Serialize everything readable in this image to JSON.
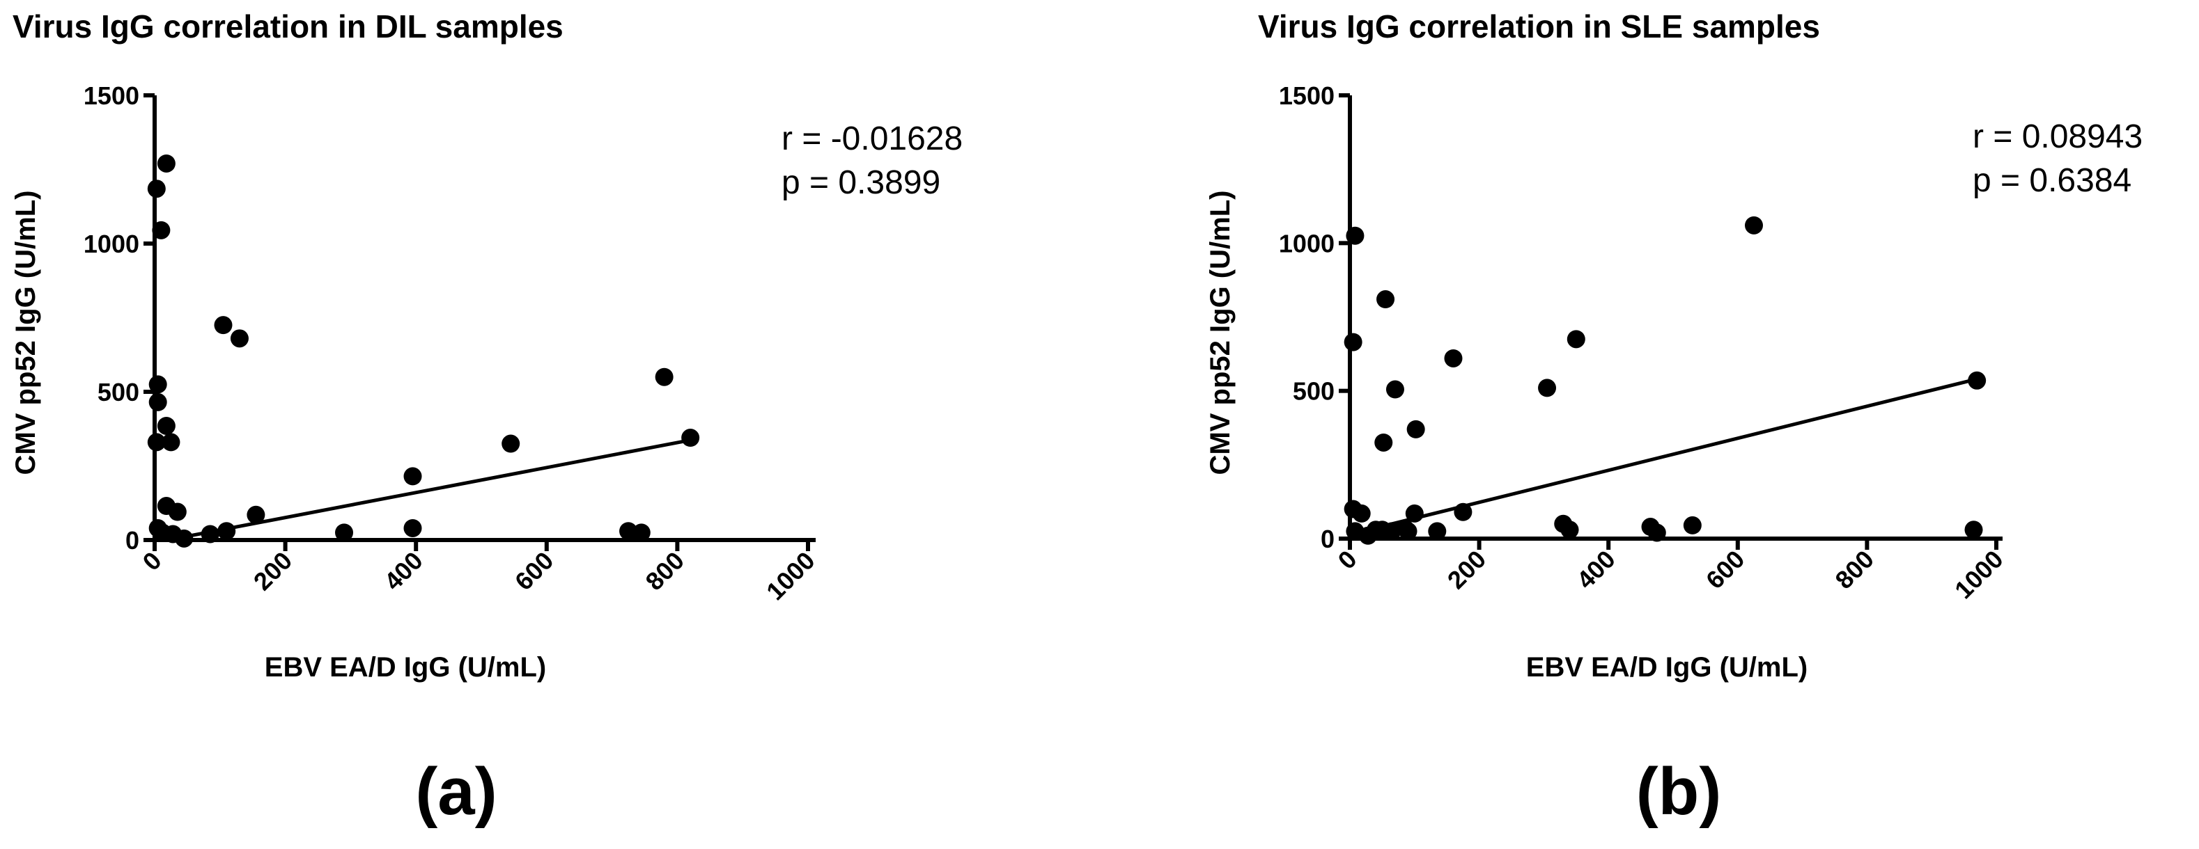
{
  "chart_data": [
    {
      "type": "scatter",
      "title": "Virus IgG correlation in DIL samples",
      "xlabel": "EBV EA/D IgG (U/mL)",
      "ylabel": "CMV pp52 IgG (U/mL)",
      "xlim": [
        0,
        1000
      ],
      "ylim": [
        0,
        1500
      ],
      "xticks": [
        "0",
        "200",
        "400",
        "600",
        "800",
        "1000"
      ],
      "yticks": [
        "0",
        "500",
        "1000",
        "1500"
      ],
      "annotations": [
        "r = -0.01628",
        "p = 0.3899"
      ],
      "panel_label": "(a)",
      "points": [
        [
          3,
          1185
        ],
        [
          10,
          1045
        ],
        [
          18,
          1270
        ],
        [
          5,
          525
        ],
        [
          5,
          465
        ],
        [
          18,
          385
        ],
        [
          3,
          330
        ],
        [
          25,
          330
        ],
        [
          18,
          115
        ],
        [
          35,
          95
        ],
        [
          5,
          40
        ],
        [
          12,
          25
        ],
        [
          28,
          20
        ],
        [
          45,
          5
        ],
        [
          105,
          725
        ],
        [
          130,
          680
        ],
        [
          85,
          20
        ],
        [
          110,
          30
        ],
        [
          155,
          85
        ],
        [
          290,
          25
        ],
        [
          395,
          215
        ],
        [
          395,
          40
        ],
        [
          545,
          325
        ],
        [
          725,
          30
        ],
        [
          745,
          25
        ],
        [
          780,
          550
        ],
        [
          820,
          345
        ]
      ],
      "regression": {
        "x": [
          20,
          815
        ],
        "y": [
          0,
          335
        ]
      }
    },
    {
      "type": "scatter",
      "title": "Virus IgG correlation in SLE samples",
      "xlabel": "EBV EA/D IgG (U/mL)",
      "ylabel": "CMV pp52 IgG (U/mL)",
      "xlim": [
        0,
        1000
      ],
      "ylim": [
        0,
        1500
      ],
      "xticks": [
        "0",
        "200",
        "400",
        "600",
        "800",
        "1000"
      ],
      "yticks": [
        "0",
        "500",
        "1000",
        "1500"
      ],
      "annotations": [
        "r = 0.08943",
        "p = 0.6384"
      ],
      "panel_label": "(b)",
      "points": [
        [
          8,
          1025
        ],
        [
          5,
          665
        ],
        [
          5,
          100
        ],
        [
          18,
          85
        ],
        [
          8,
          25
        ],
        [
          28,
          10
        ],
        [
          40,
          30
        ],
        [
          50,
          30
        ],
        [
          55,
          810
        ],
        [
          52,
          325
        ],
        [
          65,
          25
        ],
        [
          70,
          505
        ],
        [
          85,
          35
        ],
        [
          90,
          25
        ],
        [
          100,
          85
        ],
        [
          102,
          370
        ],
        [
          135,
          25
        ],
        [
          160,
          610
        ],
        [
          175,
          90
        ],
        [
          305,
          510
        ],
        [
          330,
          50
        ],
        [
          340,
          30
        ],
        [
          350,
          675
        ],
        [
          465,
          40
        ],
        [
          475,
          20
        ],
        [
          530,
          45
        ],
        [
          625,
          1060
        ],
        [
          965,
          30
        ],
        [
          970,
          535
        ]
      ],
      "regression": {
        "x": [
          10,
          970
        ],
        "y": [
          20,
          540
        ]
      }
    }
  ]
}
